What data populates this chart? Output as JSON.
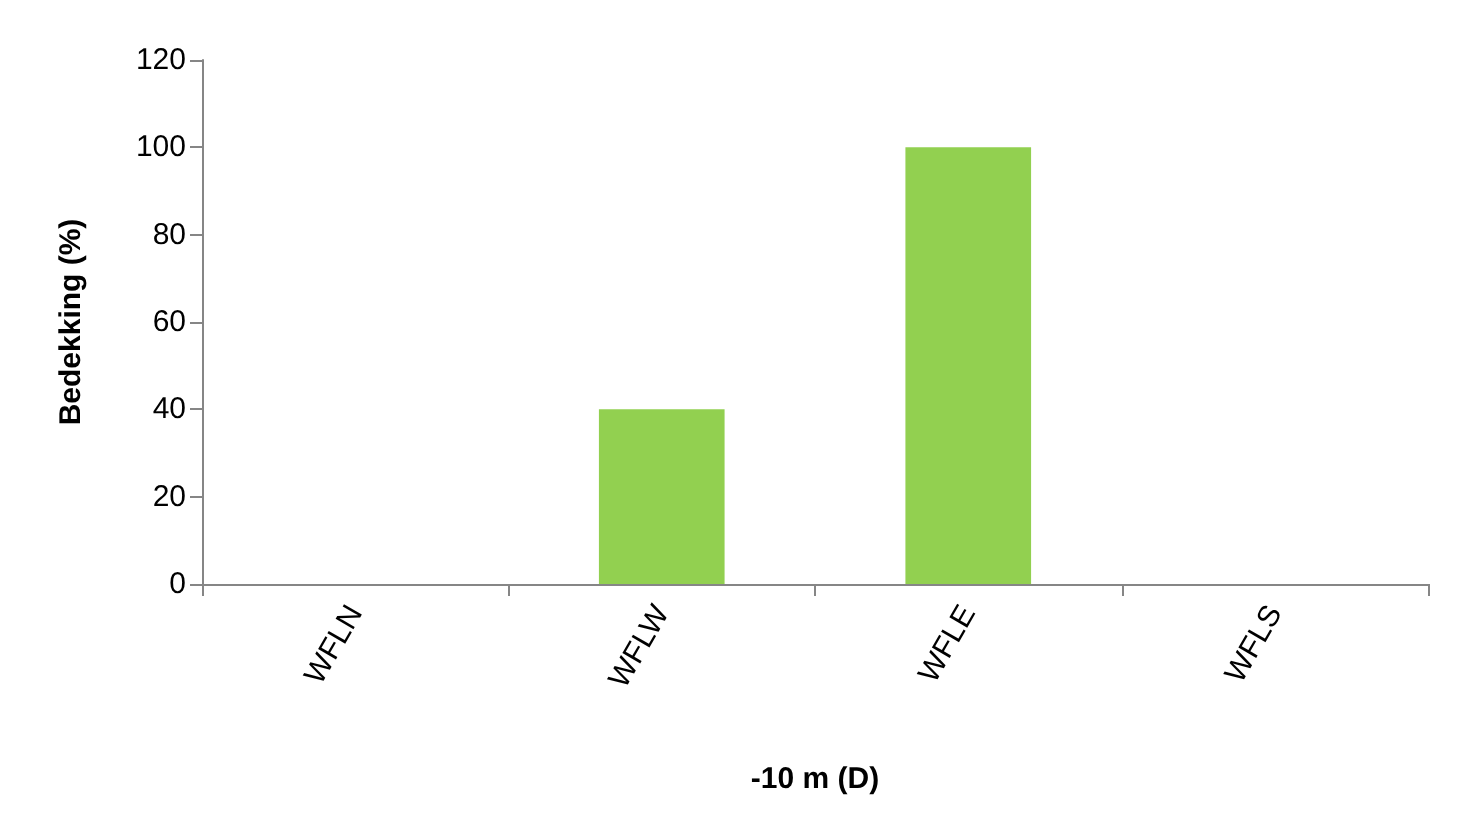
{
  "chart_data": {
    "type": "bar",
    "xlabel": "-10 m (D)",
    "ylabel": "Bedekking (%)",
    "categories": [
      "WFLN",
      "WFLW",
      "WFLE",
      "WFLS"
    ],
    "values": [
      0,
      40,
      100,
      0
    ],
    "color": "#92d050",
    "ylim": [
      0,
      120
    ],
    "yticks": [
      0,
      20,
      40,
      60,
      80,
      100,
      120
    ],
    "grid": false
  }
}
